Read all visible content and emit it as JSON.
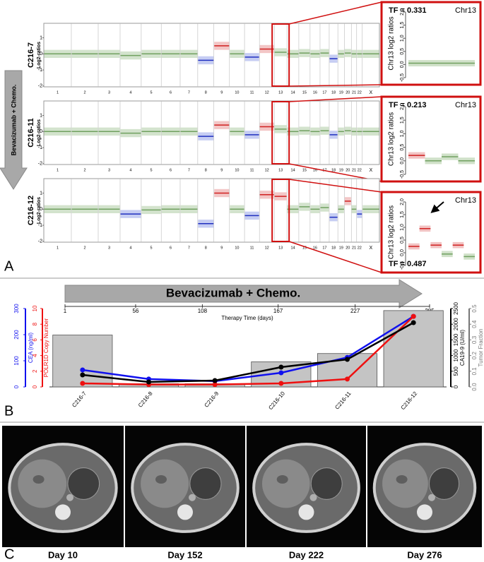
{
  "panel_a": {
    "label": "A",
    "treatment": "Bevacizumab + Chemo.",
    "y_axis_label": "Log2-ratios",
    "ylim": [
      -2.05,
      1.9
    ],
    "yticks": [
      1,
      0,
      -1,
      -2
    ],
    "chromosomes": [
      "1",
      "2",
      "3",
      "4",
      "5",
      "6",
      "7",
      "8",
      "9",
      "10",
      "11",
      "12",
      "13",
      "14",
      "15",
      "16",
      "17",
      "18",
      "19",
      "20",
      "21",
      "22",
      "X"
    ],
    "samples": [
      {
        "name": "C216-7",
        "segments": [
          0,
          0,
          0,
          -0.1,
          0,
          0,
          0,
          -0.4,
          0.5,
          0,
          -0.2,
          0.3,
          0.1,
          0,
          0.05,
          0,
          0.05,
          -0.3,
          0,
          0.05,
          0,
          0,
          0
        ]
      },
      {
        "name": "C216-11",
        "segments": [
          0,
          0,
          0,
          -0.1,
          0,
          0,
          0,
          -0.3,
          0.4,
          0,
          -0.2,
          0.3,
          0.15,
          0,
          0.05,
          0,
          0.05,
          -0.2,
          0,
          0.05,
          0,
          0,
          0
        ]
      },
      {
        "name": "C216-12",
        "segments": [
          0,
          0,
          0,
          -0.3,
          -0.05,
          0,
          0,
          -0.9,
          1.0,
          0,
          -0.4,
          0.9,
          0.8,
          0,
          0.15,
          0,
          0.1,
          -0.5,
          0,
          0.5,
          0,
          -0.3,
          0
        ]
      }
    ],
    "inset_ylim": [
      -0.5,
      2.0
    ],
    "inset_yticks": [
      {
        "value": -0.5,
        "label": "-0.5"
      },
      {
        "value": 0,
        "label": "0.0"
      },
      {
        "value": 0.5,
        "label": "0.5"
      },
      {
        "value": 1,
        "label": "1.0"
      },
      {
        "value": 1.5,
        "label": "1.5"
      },
      {
        "value": 2,
        "label": "2.0"
      }
    ],
    "insets": [
      {
        "tf_label": "TF = 0.331",
        "chromosome": "Chr13",
        "y_axis_label": "Chr13 log2 ratios",
        "segments": [
          0.05
        ]
      },
      {
        "tf_label": "TF = 0.213",
        "chromosome": "Chr13",
        "y_axis_label": "Chr13 log2 ratios",
        "segments": [
          0.2,
          0.0,
          0.15,
          0.0
        ]
      },
      {
        "tf_label": "TF = 0.487",
        "chromosome": "Chr13",
        "y_axis_label": "Chr13 log2 ratios",
        "segments": [
          0.25,
          0.95,
          0.3,
          -0.05,
          0.3,
          -0.15
        ]
      }
    ]
  },
  "panel_b": {
    "label": "B",
    "treatment": "Bevacizumab + Chemo.",
    "chart_data": {
      "type": "combo",
      "categories": [
        "C216-7",
        "C216-8",
        "C216-9",
        "C216-10",
        "C216-11",
        "C216-12"
      ],
      "top_axis": {
        "label": "Therapy Time (days)",
        "lim": [
          1,
          285
        ],
        "ticks": [
          1,
          56,
          108,
          167,
          227,
          285
        ]
      },
      "axes": [
        {
          "label": "CEA (ng/ml)",
          "color": "#1010ee",
          "side": "left",
          "lim": [
            0,
            300
          ],
          "ticks": [
            0,
            100,
            200,
            300
          ]
        },
        {
          "label": "POLR1D Copy Number",
          "color": "#ee1010",
          "side": "left",
          "lim": [
            0,
            10
          ],
          "ticks": [
            0,
            2,
            4,
            6,
            8,
            10
          ]
        },
        {
          "label": "CA19-9 (U/ml)",
          "color": "#000000",
          "side": "right",
          "lim": [
            0,
            2500
          ],
          "ticks": [
            0,
            500,
            1000,
            1500,
            2000,
            2500
          ]
        },
        {
          "label": "Tumor Fraction",
          "color": "#777777",
          "side": "right",
          "lim": [
            0,
            0.5
          ],
          "ticks": [
            {
              "value": 0,
              "label": "0.0"
            },
            0.1,
            0.2,
            0.3,
            0.4,
            0.5
          ]
        }
      ],
      "series": [
        {
          "type": "bar",
          "axis": 3,
          "color": "#c4c4c4",
          "values": [
            0.331,
            0.02,
            0.02,
            0.16,
            0.213,
            0.487
          ]
        },
        {
          "type": "line",
          "axis": 0,
          "color": "#1010ee",
          "values": [
            65,
            30,
            22,
            54,
            113,
            270
          ]
        },
        {
          "type": "line",
          "axis": 1,
          "color": "#ee1010",
          "values": [
            0.45,
            0.3,
            0.3,
            0.45,
            1.0,
            9.0
          ]
        },
        {
          "type": "line",
          "axis": 2,
          "color": "#000000",
          "values": [
            383,
            158,
            203,
            630,
            878,
            2050
          ]
        }
      ]
    }
  },
  "panel_c": {
    "label": "C",
    "images": [
      {
        "day": "Day 10"
      },
      {
        "day": "Day 152"
      },
      {
        "day": "Day 222"
      },
      {
        "day": "Day 276"
      }
    ]
  }
}
